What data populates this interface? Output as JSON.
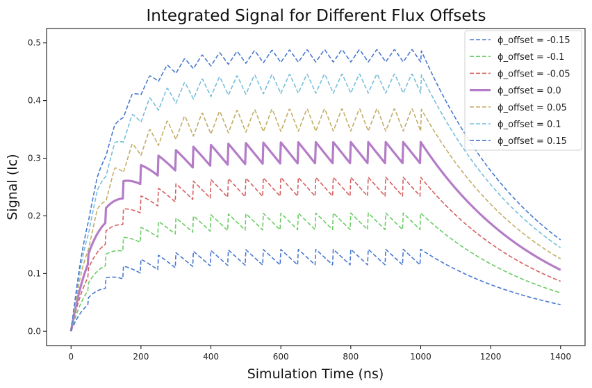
{
  "chart_data": {
    "type": "line",
    "title": "Integrated Signal for Different Flux Offsets",
    "xlabel": "Simulation Time (ns)",
    "ylabel": "Signal (Ic)",
    "xlim": [
      -70,
      1470
    ],
    "ylim": [
      -0.025,
      0.525
    ],
    "xticks": [
      0,
      200,
      400,
      600,
      800,
      1000,
      1200,
      1400
    ],
    "yticks": [
      0.0,
      0.1,
      0.2,
      0.3,
      0.4,
      0.5
    ],
    "grid": false,
    "legend_position": "top-right",
    "model": {
      "period_ns": 50,
      "rise_tau_ns": 95,
      "decay_tau_ns": 355,
      "on_time_ns": 1000,
      "end_time_ns": 1400
    },
    "series": [
      {
        "name": "ϕ_offset = -0.15",
        "color": "#4878cf",
        "linewidth": 1.6,
        "dashed": true,
        "plateau": 0.128,
        "ripple": 0.028,
        "ripple_shape": "sawtooth"
      },
      {
        "name": "ϕ_offset = -0.1",
        "color": "#6acc65",
        "linewidth": 1.6,
        "dashed": true,
        "plateau": 0.19,
        "ripple": 0.03,
        "ripple_shape": "sawtooth"
      },
      {
        "name": "ϕ_offset = -0.05",
        "color": "#d65f5f",
        "linewidth": 1.6,
        "dashed": true,
        "plateau": 0.25,
        "ripple": 0.034,
        "ripple_shape": "sawtooth"
      },
      {
        "name": "ϕ_offset = 0.0",
        "color": "#b47cc7",
        "linewidth": 3.2,
        "dashed": false,
        "plateau": 0.309,
        "ripple": 0.038,
        "ripple_shape": "sawtooth"
      },
      {
        "name": "ϕ_offset = 0.05",
        "color": "#c4ad66",
        "linewidth": 1.6,
        "dashed": true,
        "plateau": 0.367,
        "ripple": 0.04,
        "ripple_shape": "triangle"
      },
      {
        "name": "ϕ_offset = 0.1",
        "color": "#77bedb",
        "linewidth": 1.6,
        "dashed": true,
        "plateau": 0.43,
        "ripple": 0.034,
        "ripple_shape": "triangle"
      },
      {
        "name": "ϕ_offset = 0.15",
        "color": "#4878cf",
        "linewidth": 1.6,
        "dashed": true,
        "plateau": 0.478,
        "ripple": 0.022,
        "ripple_shape": "triangle"
      }
    ]
  }
}
